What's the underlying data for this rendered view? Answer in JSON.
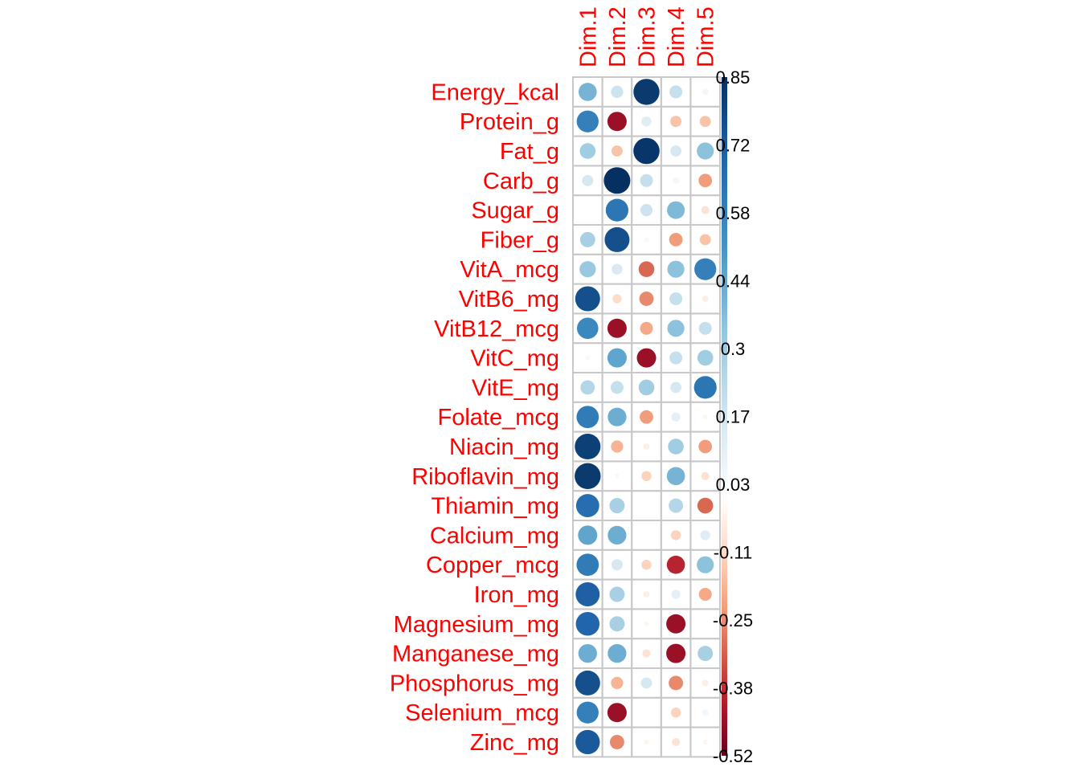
{
  "chart_data": {
    "type": "heatmap",
    "title": "",
    "xlabel": "",
    "ylabel": "",
    "columns": [
      "Dim.1",
      "Dim.2",
      "Dim.3",
      "Dim.4",
      "Dim.5"
    ],
    "rows": [
      "Energy_kcal",
      "Protein_g",
      "Fat_g",
      "Carb_g",
      "Sugar_g",
      "Fiber_g",
      "VitA_mcg",
      "VitB6_mg",
      "VitB12_mcg",
      "VitC_mg",
      "VitE_mg",
      "Folate_mcg",
      "Niacin_mg",
      "Riboflavin_mg",
      "Thiamin_mg",
      "Calcium_mg",
      "Copper_mcg",
      "Iron_mg",
      "Magnesium_mg",
      "Manganese_mg",
      "Phosphorus_mg",
      "Selenium_mcg",
      "Zinc_mg"
    ],
    "values": [
      [
        0.4,
        0.18,
        0.82,
        0.2,
        0.05
      ],
      [
        0.58,
        -0.45,
        0.12,
        -0.15,
        -0.15
      ],
      [
        0.3,
        -0.15,
        0.83,
        0.15,
        0.35
      ],
      [
        0.15,
        0.85,
        0.2,
        0.05,
        -0.22
      ],
      [
        0.0,
        0.62,
        0.18,
        0.38,
        -0.08
      ],
      [
        0.28,
        0.75,
        0.03,
        -0.22,
        -0.15
      ],
      [
        0.32,
        0.14,
        -0.3,
        0.35,
        0.58
      ],
      [
        0.75,
        -0.1,
        -0.25,
        0.2,
        -0.05
      ],
      [
        0.55,
        -0.45,
        -0.2,
        0.35,
        0.2
      ],
      [
        0.03,
        0.45,
        -0.45,
        0.2,
        0.3
      ],
      [
        0.25,
        0.2,
        0.3,
        0.15,
        0.62
      ],
      [
        0.6,
        0.42,
        -0.22,
        0.1,
        -0.03
      ],
      [
        0.8,
        -0.18,
        -0.05,
        0.3,
        -0.22
      ],
      [
        0.82,
        0.03,
        -0.12,
        0.4,
        -0.08
      ],
      [
        0.65,
        0.28,
        0.0,
        0.25,
        -0.3
      ],
      [
        0.45,
        0.42,
        0.0,
        -0.12,
        0.12
      ],
      [
        0.6,
        0.15,
        -0.12,
        -0.4,
        0.35
      ],
      [
        0.7,
        0.28,
        -0.05,
        0.1,
        -0.2
      ],
      [
        0.68,
        0.28,
        -0.03,
        -0.45,
        0.0
      ],
      [
        0.42,
        0.42,
        -0.08,
        -0.45,
        0.28
      ],
      [
        0.75,
        -0.18,
        0.15,
        -0.25,
        -0.05
      ],
      [
        0.58,
        -0.45,
        0.0,
        -0.12,
        0.05
      ],
      [
        0.72,
        -0.25,
        -0.03,
        -0.08,
        -0.03
      ]
    ],
    "color_scale": {
      "min": -0.52,
      "max": 0.85,
      "ticks": [
        "0.85",
        "0.72",
        "0.58",
        "0.44",
        "0.3",
        "0.17",
        "0.03",
        "-0.11",
        "-0.25",
        "-0.38",
        "-0.52"
      ],
      "colors": {
        "negative_extreme": "#67001F",
        "negative_strong": "#B2182B",
        "negative_mid": "#D6604D",
        "negative_light": "#F4A582",
        "negative_faint": "#FDDBC7",
        "neutral": "#FFFFFF",
        "positive_faint": "#D1E5F0",
        "positive_light": "#92C5DE",
        "positive_mid": "#4393C3",
        "positive_strong": "#2166AC",
        "positive_extreme": "#053061"
      }
    },
    "grid": true,
    "legend": "right",
    "label_color": "#ff0000"
  }
}
